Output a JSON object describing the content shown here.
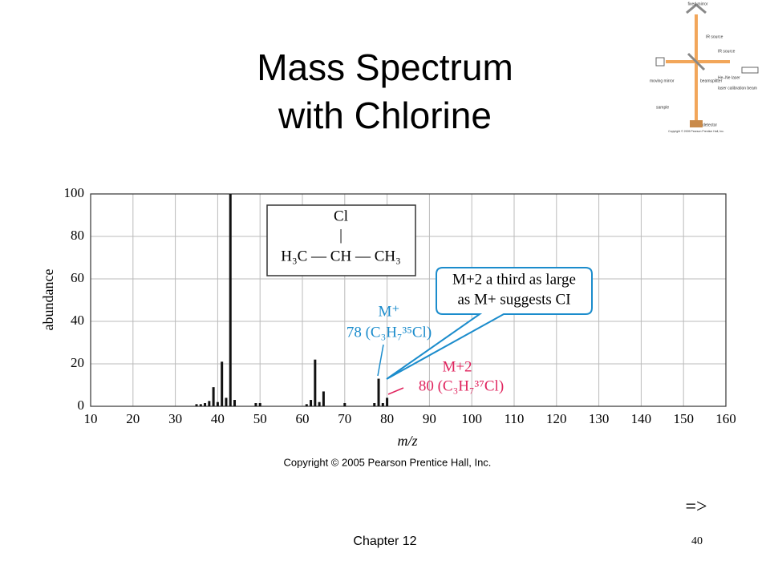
{
  "slide": {
    "title_lines": [
      "Mass Spectrum",
      "with Chlorine"
    ],
    "footer_left": "Chapter 12",
    "page_number": "40",
    "next_marker": "=>"
  },
  "inset": {
    "labels": [
      "fixed mirror",
      "IR source",
      "IR source",
      "moving mirror",
      "beamsplitter",
      "He–Ne laser",
      "laser calibration beam",
      "sample",
      "detector"
    ],
    "copyright": "Copyright © 2005 Pearson Prentice Hall, Inc."
  },
  "chart_data": {
    "type": "bar",
    "x": [
      35,
      36,
      37,
      38,
      39,
      40,
      41,
      42,
      43,
      44,
      49,
      50,
      61,
      62,
      63,
      64,
      65,
      70,
      77,
      78,
      79,
      80
    ],
    "values": [
      1,
      1,
      1.5,
      2.5,
      9,
      2,
      21,
      4,
      100,
      3,
      1.5,
      1.5,
      1,
      3,
      22,
      2,
      7,
      1.5,
      1.5,
      13,
      1.5,
      4
    ],
    "color": "#111111",
    "xlim": [
      10,
      160
    ],
    "xticks": [
      10,
      20,
      30,
      40,
      50,
      60,
      70,
      80,
      90,
      100,
      110,
      120,
      130,
      140,
      150,
      160
    ],
    "ylim": [
      0,
      100
    ],
    "yticks": [
      0,
      20,
      40,
      60,
      80,
      100
    ],
    "grid": true,
    "x_label": "m/z",
    "y_label": "abundance",
    "copyright": "Copyright © 2005 Pearson Prentice Hall, Inc.",
    "structure": {
      "top": "Cl",
      "bond": "|",
      "chain": "H₃C — CH — CH₃"
    },
    "annotations": {
      "m_plus": [
        "M⁺",
        "78 (C₃H₇³⁵Cl)"
      ],
      "m_plus_2": [
        "M+2",
        "80 (C₃H₇³⁷Cl)"
      ],
      "callout": [
        "M+2 a third as large",
        "as M+ suggests CI"
      ]
    }
  }
}
